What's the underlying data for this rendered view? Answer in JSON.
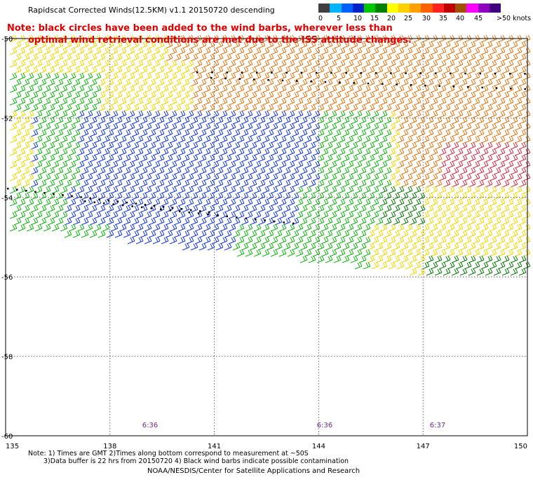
{
  "header": {
    "title": "Rapidscat Corrected Winds(12.5KM) v1.1 20150720 descending"
  },
  "notes": {
    "line1": "Note: black circles have been added to the wind barbs, wherever less than",
    "line2": "optimal wind retrieval conditions are met due to the ISS attitude changes."
  },
  "legend": {
    "labels": [
      "0",
      "5",
      "10",
      "15",
      "20",
      "25",
      "30",
      "35",
      "40",
      "45",
      ">50 knots"
    ],
    "colors": [
      "#404040",
      "#00b4ff",
      "#0060ff",
      "#0020c8",
      "#00c800",
      "#008000",
      "#ffff00",
      "#ffd000",
      "#ffa000",
      "#ff6000",
      "#ff2020",
      "#c00000",
      "#a05000",
      "#ff00ff",
      "#9000c0",
      "#400080"
    ]
  },
  "map": {
    "lat_labels": [
      "-50",
      "-52",
      "-54",
      "-56",
      "-58",
      "-60"
    ],
    "lon_labels": [
      "135",
      "138",
      "141",
      "144",
      "147",
      "150"
    ],
    "time_labels": [
      "6:36",
      "6:36",
      "6:37"
    ]
  },
  "footer": {
    "note1": "Note: 1) Times are GMT 2)Times along bottom correspond to measurement at ~50S",
    "note2": "3)Data buffer is 22 hrs from 20150720 4) Black wind barbs indicate possible contamination",
    "credit": "NOAA/NESDIS/Center for Satellite Applications and Research"
  }
}
